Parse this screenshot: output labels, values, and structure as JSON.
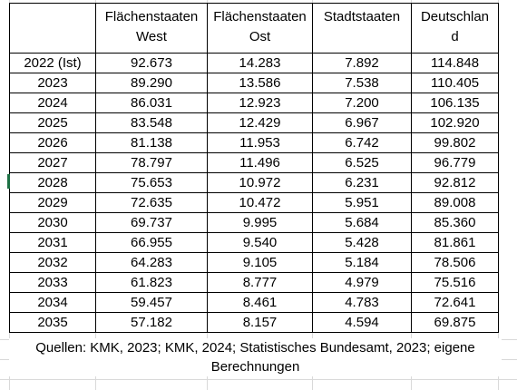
{
  "table": {
    "headers": [
      [
        "",
        ""
      ],
      [
        "Flächenstaaten",
        "West"
      ],
      [
        "Flächenstaaten",
        "Ost"
      ],
      [
        "Stadtstaaten",
        ""
      ],
      [
        "Deutschlan",
        "d"
      ]
    ],
    "rows": [
      [
        "2022 (Ist)",
        "92.673",
        "14.283",
        "7.892",
        "114.848"
      ],
      [
        "2023",
        "89.290",
        "13.586",
        "7.538",
        "110.405"
      ],
      [
        "2024",
        "86.031",
        "12.923",
        "7.200",
        "106.135"
      ],
      [
        "2025",
        "83.548",
        "12.429",
        "6.967",
        "102.920"
      ],
      [
        "2026",
        "81.138",
        "11.953",
        "6.742",
        "99.802"
      ],
      [
        "2027",
        "78.797",
        "11.496",
        "6.525",
        "96.779"
      ],
      [
        "2028",
        "75.653",
        "10.972",
        "6.231",
        "92.812"
      ],
      [
        "2029",
        "72.635",
        "10.472",
        "5.951",
        "89.008"
      ],
      [
        "2030",
        "69.737",
        "9.995",
        "5.684",
        "85.360"
      ],
      [
        "2031",
        "66.955",
        "9.540",
        "5.428",
        "81.861"
      ],
      [
        "2032",
        "64.283",
        "9.105",
        "5.184",
        "78.506"
      ],
      [
        "2033",
        "61.823",
        "8.777",
        "4.979",
        "75.516"
      ],
      [
        "2034",
        "59.457",
        "8.461",
        "4.783",
        "72.641"
      ],
      [
        "2035",
        "57.182",
        "8.157",
        "4.594",
        "69.875"
      ]
    ]
  },
  "source": {
    "line1": "Quellen: KMK, 2023; KMK, 2024; Statistisches Bundesamt, 2023; eigene",
    "line2": "Berechnungen"
  },
  "colors": {
    "grid": "#d9d9d9",
    "border": "#000000",
    "active_cell_marker": "#1e7145"
  }
}
